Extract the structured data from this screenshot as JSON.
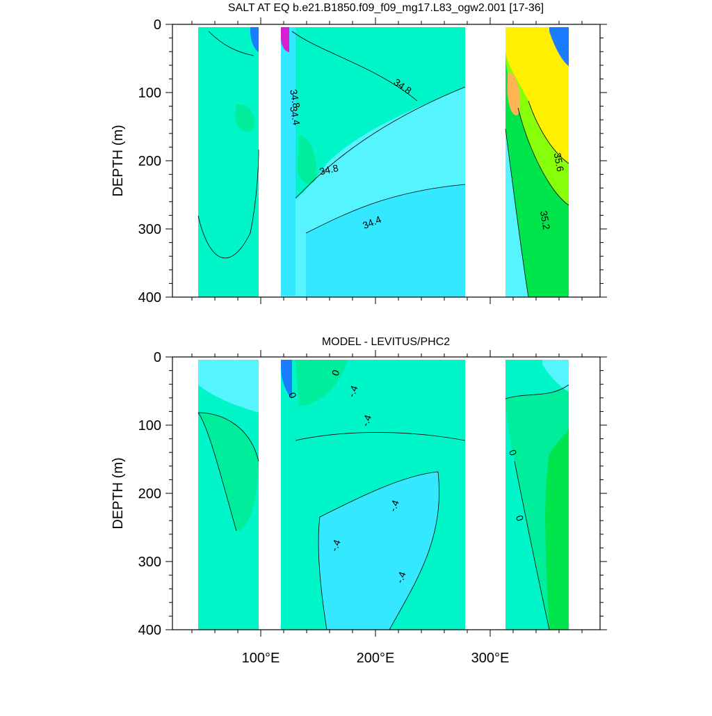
{
  "chart_data": [
    {
      "type": "heatmap",
      "title": "SALT AT EQ b.e21.B1850.f09_f09_mg17.L83_ogw2.001 [17-36]",
      "ylabel": "DEPTH (m)",
      "ylim": [
        400,
        0
      ],
      "y_ticks": [
        "0",
        "100",
        "200",
        "300",
        "400"
      ],
      "contour_labels": [
        {
          "text": "34.8",
          "lon": 222,
          "depth": 95,
          "rotate": 35
        },
        {
          "text": "34.8",
          "lon": 127,
          "depth": 110,
          "rotate": 80
        },
        {
          "text": "34.4",
          "lon": 127,
          "depth": 135,
          "rotate": 80
        },
        {
          "text": "34.8",
          "lon": 160,
          "depth": 218,
          "rotate": -12
        },
        {
          "text": "34.4",
          "lon": 198,
          "depth": 295,
          "rotate": -22
        },
        {
          "text": "35.6",
          "lon": 357,
          "depth": 203,
          "rotate": 80
        },
        {
          "text": "35.2",
          "lon": 345,
          "depth": 288,
          "rotate": 80
        }
      ]
    },
    {
      "type": "heatmap",
      "title": "MODEL - LEVITUS/PHC2",
      "ylabel": "DEPTH (m)",
      "ylim": [
        400,
        0
      ],
      "y_ticks": [
        "0",
        "100",
        "200",
        "300",
        "400"
      ],
      "x_ticks": [
        "100°E",
        "200°E",
        "300°E"
      ],
      "contour_labels": [
        {
          "text": "0",
          "lon": 168,
          "depth": 25,
          "rotate": -70
        },
        {
          "text": "0",
          "lon": 125,
          "depth": 58,
          "rotate": 70
        },
        {
          "text": "-.4",
          "lon": 183,
          "depth": 52,
          "rotate": -70
        },
        {
          "text": "-.4",
          "lon": 195,
          "depth": 95,
          "rotate": -70
        },
        {
          "text": "0",
          "lon": 317,
          "depth": 142,
          "rotate": 70
        },
        {
          "text": "-.4",
          "lon": 219,
          "depth": 220,
          "rotate": -70
        },
        {
          "text": "0",
          "lon": 323,
          "depth": 238,
          "rotate": 70
        },
        {
          "text": "-.4",
          "lon": 168,
          "depth": 278,
          "rotate": -70
        },
        {
          "text": "-.4",
          "lon": 225,
          "depth": 325,
          "rotate": -70
        }
      ]
    }
  ],
  "colors": {
    "land": "#ffffff",
    "aquamarine": "#00f6c8",
    "mint": "#00ee9c",
    "cyan": "#33e8ff",
    "light_cyan": "#55f4ff",
    "green": "#00e54c",
    "yellow": "#ffef00",
    "gold": "#ffd13a",
    "orange": "#ffb454",
    "lime": "#88ff0a",
    "blue": "#1a7cff",
    "magenta": "#d51fd1"
  }
}
